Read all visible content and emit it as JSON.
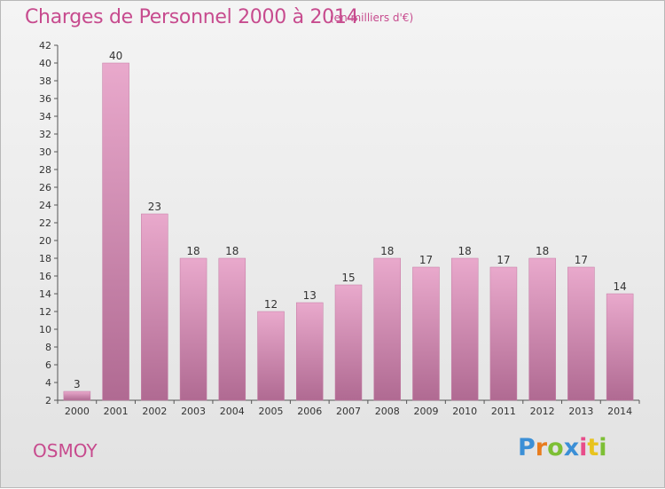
{
  "title": "Charges de Personnel 2000 à 2014",
  "subtitle": "(en milliers d'€)",
  "town": "OSMOY",
  "logo": {
    "letters": [
      "P",
      "r",
      "o",
      "x",
      "i",
      "t",
      "i"
    ]
  },
  "colors": {
    "accent": "#c74b8e",
    "bar_top": "#e9a9cc",
    "bar_bottom": "#b06a92",
    "bar_edge": "#c47aa3"
  },
  "chart_data": {
    "type": "bar",
    "categories": [
      "2000",
      "2001",
      "2002",
      "2003",
      "2004",
      "2005",
      "2006",
      "2007",
      "2008",
      "2009",
      "2010",
      "2011",
      "2012",
      "2013",
      "2014"
    ],
    "values": [
      3,
      40,
      23,
      18,
      18,
      12,
      13,
      15,
      18,
      17,
      18,
      17,
      18,
      17,
      14
    ],
    "ylim": [
      2,
      42
    ],
    "yticks": [
      2,
      4,
      6,
      8,
      10,
      12,
      14,
      16,
      18,
      20,
      22,
      24,
      26,
      28,
      30,
      32,
      34,
      36,
      38,
      40,
      42
    ],
    "grid": false,
    "title": "Charges de Personnel 2000 à 2014",
    "xlabel": "",
    "ylabel": ""
  }
}
